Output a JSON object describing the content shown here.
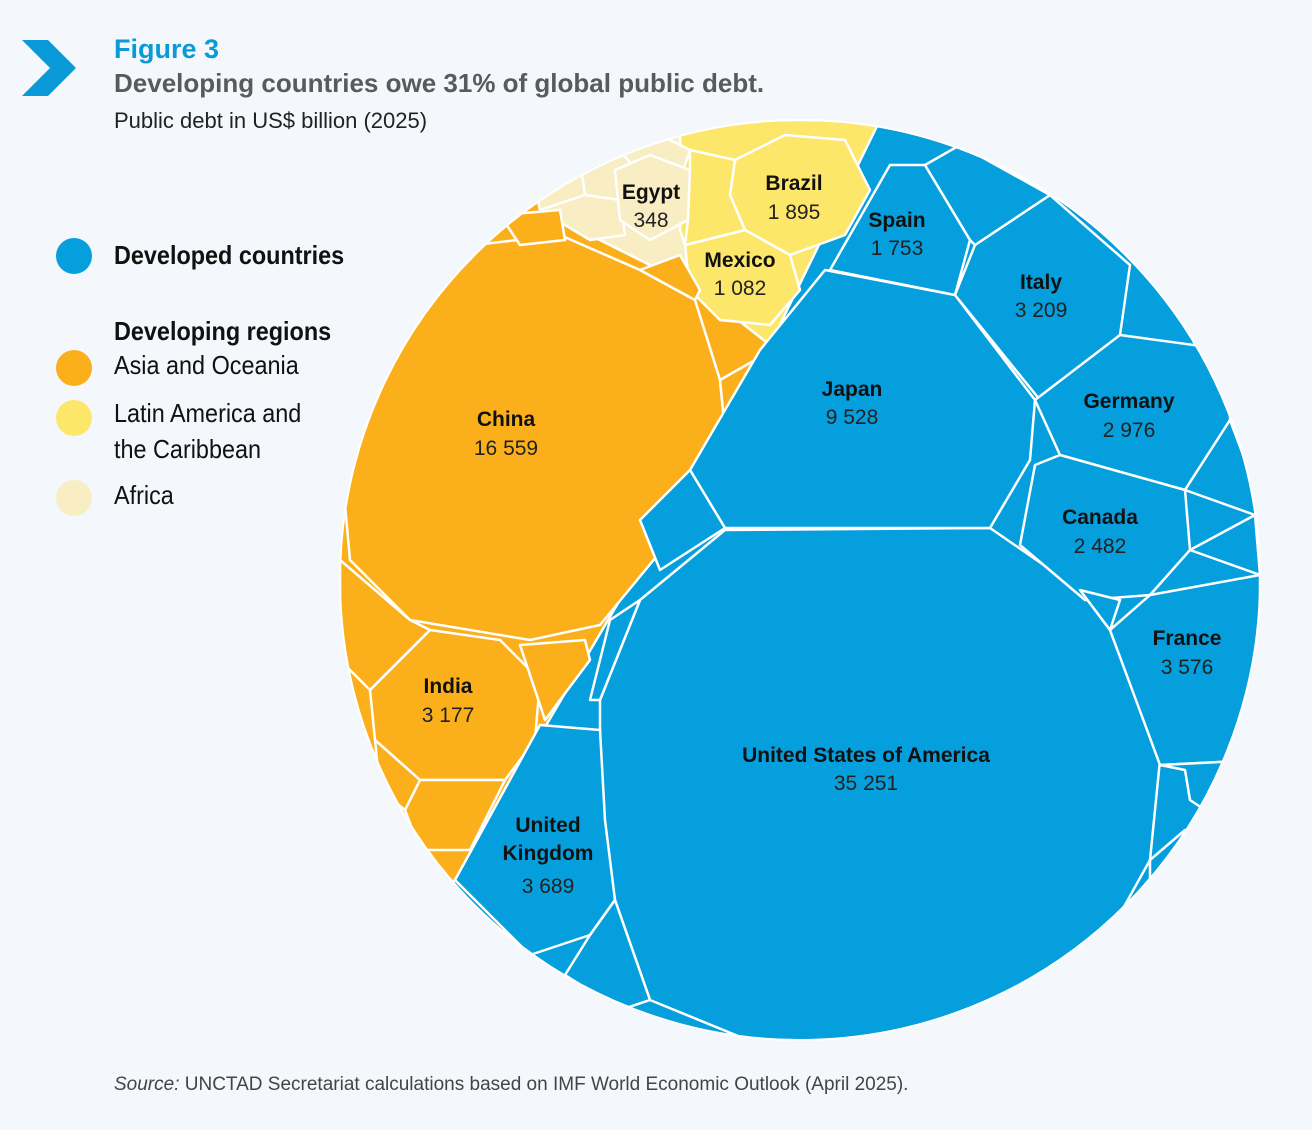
{
  "figure_label": "Figure 3",
  "title": "Developing countries owe 31% of global public debt.",
  "subtitle": "Public debt in US$ billion (2025)",
  "legend": {
    "developed": "Developed countries",
    "developing_heading": "Developing regions",
    "asia": "Asia and Oceania",
    "latam_line1": "Latin America and",
    "latam_line2": "the Caribbean",
    "africa": "Africa"
  },
  "source_prefix": "Source:",
  "source_text": " UNCTAD Secretariat calculations based on IMF World Economic Outlook (April 2025).",
  "colors": {
    "developed": "#049fdc",
    "asia": "#fbb01b",
    "latam": "#fde76a",
    "africa": "#f9edc3",
    "cell_border": "#ffffff"
  },
  "chart_data": {
    "type": "voronoi-treemap",
    "title": "Developing countries owe 31% of global public debt.",
    "subtitle": "Public debt in US$ billion (2025)",
    "unit": "US$ billion",
    "developing_share_percent": 31,
    "groups": [
      {
        "name": "Developed countries",
        "color": "#049fdc"
      },
      {
        "name": "Asia and Oceania",
        "color": "#fbb01b"
      },
      {
        "name": "Latin America and the Caribbean",
        "color": "#fde76a"
      },
      {
        "name": "Africa",
        "color": "#f9edc3"
      }
    ],
    "labeled_cells": [
      {
        "name": "United States of America",
        "value": 35251,
        "label": "35 251",
        "group": "Developed countries"
      },
      {
        "name": "China",
        "value": 16559,
        "label": "16 559",
        "group": "Asia and Oceania"
      },
      {
        "name": "Japan",
        "value": 9528,
        "label": "9 528",
        "group": "Developed countries"
      },
      {
        "name": "United Kingdom",
        "value": 3689,
        "label": "3 689",
        "group": "Developed countries"
      },
      {
        "name": "France",
        "value": 3576,
        "label": "3 576",
        "group": "Developed countries"
      },
      {
        "name": "Italy",
        "value": 3209,
        "label": "3 209",
        "group": "Developed countries"
      },
      {
        "name": "India",
        "value": 3177,
        "label": "3 177",
        "group": "Asia and Oceania"
      },
      {
        "name": "Germany",
        "value": 2976,
        "label": "2 976",
        "group": "Developed countries"
      },
      {
        "name": "Canada",
        "value": 2482,
        "label": "2 482",
        "group": "Developed countries"
      },
      {
        "name": "Brazil",
        "value": 1895,
        "label": "1 895",
        "group": "Latin America and the Caribbean"
      },
      {
        "name": "Spain",
        "value": 1753,
        "label": "1 753",
        "group": "Developed countries"
      },
      {
        "name": "Mexico",
        "value": 1082,
        "label": "1 082",
        "group": "Latin America and the Caribbean"
      },
      {
        "name": "Egypt",
        "value": 348,
        "label": "348",
        "group": "Africa"
      }
    ]
  }
}
